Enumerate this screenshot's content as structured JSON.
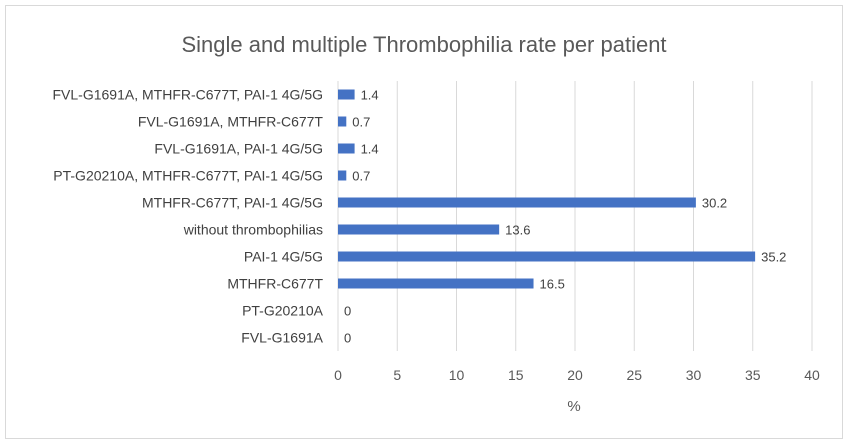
{
  "chart_data": {
    "type": "bar",
    "orientation": "horizontal",
    "title": "Single and multiple Thrombophilia rate per patient",
    "xlabel": "%",
    "ylabel": "",
    "categories": [
      "FVL-G1691A",
      "PT-G20210A",
      "MTHFR-C677T",
      "PAI-1 4G/5G",
      "without thrombophilias",
      "MTHFR-C677T, PAI-1 4G/5G",
      "PT-G20210A, MTHFR-C677T, PAI-1 4G/5G",
      "FVL-G1691A, PAI-1 4G/5G",
      "FVL-G1691A, MTHFR-C677T",
      "FVL-G1691A, MTHFR-C677T, PAI-1 4G/5G"
    ],
    "values": [
      0,
      0,
      16.5,
      35.2,
      13.6,
      30.2,
      0.7,
      1.4,
      0.7,
      1.4
    ],
    "xlim": [
      0,
      40
    ],
    "xticks": [
      0,
      5,
      10,
      15,
      20,
      25,
      30,
      35,
      40
    ],
    "grid": true,
    "bar_color": "#4472c4",
    "grid_color": "#d9d9d9"
  }
}
